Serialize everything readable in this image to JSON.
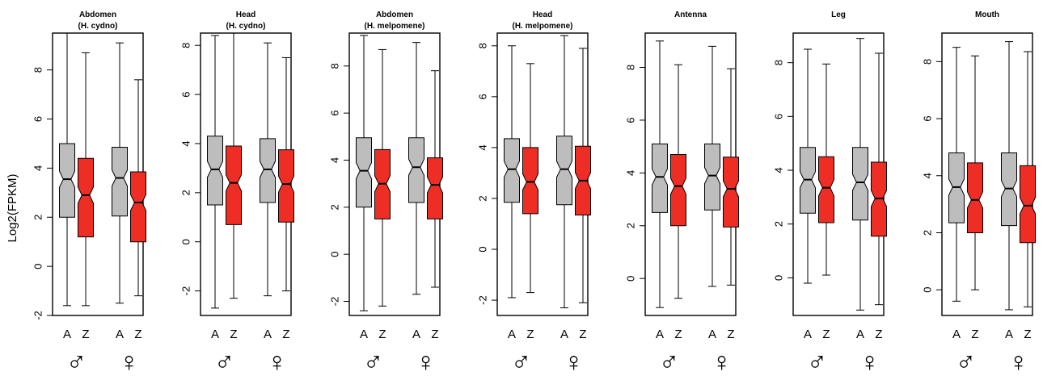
{
  "ylabel": "Log2(FPKM)",
  "categories": [
    "A",
    "Z",
    "A",
    "Z"
  ],
  "sex_groups": [
    "♂",
    "♀"
  ],
  "colors": {
    "A": "#bdbdbd",
    "Z": "#ee2e24",
    "stroke": "#000000"
  },
  "chart_data": [
    {
      "type": "boxplot",
      "title": [
        "Abdomen",
        "(H. cydno)"
      ],
      "ylim": [
        -2,
        9.5
      ],
      "yticks": [
        -2,
        0,
        2,
        4,
        6,
        8
      ],
      "boxes": [
        {
          "label": "A",
          "sex": "male",
          "min": -1.6,
          "q1": 2.0,
          "median": 3.55,
          "q3": 5.0,
          "max": 9.5
        },
        {
          "label": "Z",
          "sex": "male",
          "min": -1.6,
          "q1": 1.2,
          "median": 2.9,
          "q3": 4.4,
          "max": 8.7
        },
        {
          "label": "A",
          "sex": "female",
          "min": -1.5,
          "q1": 2.05,
          "median": 3.6,
          "q3": 4.85,
          "max": 9.1
        },
        {
          "label": "Z",
          "sex": "female",
          "min": -1.2,
          "q1": 1.0,
          "median": 2.6,
          "q3": 3.85,
          "max": 7.6
        }
      ]
    },
    {
      "type": "boxplot",
      "title": [
        "Head",
        "(H. cydno)"
      ],
      "ylim": [
        -3,
        8.5
      ],
      "yticks": [
        -2,
        0,
        2,
        4,
        6,
        8
      ],
      "boxes": [
        {
          "label": "A",
          "sex": "male",
          "min": -2.7,
          "q1": 1.5,
          "median": 2.95,
          "q3": 4.3,
          "max": 8.4
        },
        {
          "label": "Z",
          "sex": "male",
          "min": -2.3,
          "q1": 0.7,
          "median": 2.4,
          "q3": 3.9,
          "max": 8.5
        },
        {
          "label": "A",
          "sex": "female",
          "min": -2.2,
          "q1": 1.6,
          "median": 2.95,
          "q3": 4.2,
          "max": 8.1
        },
        {
          "label": "Z",
          "sex": "female",
          "min": -2.0,
          "q1": 0.8,
          "median": 2.35,
          "q3": 3.75,
          "max": 7.5
        }
      ]
    },
    {
      "type": "boxplot",
      "title": [
        "Abdomen",
        "(H. melpomene)"
      ],
      "ylim": [
        -2.6,
        9.4
      ],
      "yticks": [
        -2,
        0,
        2,
        4,
        6,
        8
      ],
      "boxes": [
        {
          "label": "A",
          "sex": "male",
          "min": -2.4,
          "q1": 2.0,
          "median": 3.55,
          "q3": 4.95,
          "max": 9.3
        },
        {
          "label": "Z",
          "sex": "male",
          "min": -2.2,
          "q1": 1.5,
          "median": 3.0,
          "q3": 4.45,
          "max": 8.7
        },
        {
          "label": "A",
          "sex": "female",
          "min": -1.7,
          "q1": 2.2,
          "median": 3.7,
          "q3": 4.95,
          "max": 9.0
        },
        {
          "label": "Z",
          "sex": "female",
          "min": -1.4,
          "q1": 1.5,
          "median": 2.95,
          "q3": 4.1,
          "max": 7.8
        }
      ]
    },
    {
      "type": "boxplot",
      "title": [
        "Head",
        "(H. melpomene)"
      ],
      "ylim": [
        -2.6,
        8.5
      ],
      "yticks": [
        -2,
        0,
        2,
        4,
        6,
        8
      ],
      "boxes": [
        {
          "label": "A",
          "sex": "male",
          "min": -1.9,
          "q1": 1.85,
          "median": 3.15,
          "q3": 4.35,
          "max": 8.0
        },
        {
          "label": "Z",
          "sex": "male",
          "min": -1.7,
          "q1": 1.4,
          "median": 2.65,
          "q3": 4.0,
          "max": 7.3
        },
        {
          "label": "A",
          "sex": "female",
          "min": -2.3,
          "q1": 1.75,
          "median": 3.15,
          "q3": 4.45,
          "max": 8.4
        },
        {
          "label": "Z",
          "sex": "female",
          "min": -2.1,
          "q1": 1.35,
          "median": 2.7,
          "q3": 4.05,
          "max": 7.9
        }
      ]
    },
    {
      "type": "boxplot",
      "title": [
        "Antenna"
      ],
      "ylim": [
        -1.4,
        9.3
      ],
      "yticks": [
        0,
        2,
        4,
        6,
        8
      ],
      "boxes": [
        {
          "label": "A",
          "sex": "male",
          "min": -1.1,
          "q1": 2.5,
          "median": 3.85,
          "q3": 5.1,
          "max": 9.0
        },
        {
          "label": "Z",
          "sex": "male",
          "min": -0.75,
          "q1": 2.0,
          "median": 3.5,
          "q3": 4.7,
          "max": 8.1
        },
        {
          "label": "A",
          "sex": "female",
          "min": -0.3,
          "q1": 2.6,
          "median": 3.9,
          "q3": 5.1,
          "max": 8.8
        },
        {
          "label": "Z",
          "sex": "female",
          "min": -0.25,
          "q1": 1.95,
          "median": 3.4,
          "q3": 4.6,
          "max": 7.95
        }
      ]
    },
    {
      "type": "boxplot",
      "title": [
        "Leg"
      ],
      "ylim": [
        -1.4,
        9.1
      ],
      "yticks": [
        0,
        2,
        4,
        6,
        8
      ],
      "boxes": [
        {
          "label": "A",
          "sex": "male",
          "min": -0.2,
          "q1": 2.4,
          "median": 3.65,
          "q3": 4.85,
          "max": 8.5
        },
        {
          "label": "Z",
          "sex": "male",
          "min": 0.1,
          "q1": 2.05,
          "median": 3.35,
          "q3": 4.5,
          "max": 7.95
        },
        {
          "label": "A",
          "sex": "female",
          "min": -1.2,
          "q1": 2.15,
          "median": 3.55,
          "q3": 4.85,
          "max": 8.9
        },
        {
          "label": "Z",
          "sex": "female",
          "min": -1.0,
          "q1": 1.55,
          "median": 2.95,
          "q3": 4.3,
          "max": 8.35
        }
      ]
    },
    {
      "type": "boxplot",
      "title": [
        "Mouth"
      ],
      "ylim": [
        -0.9,
        9.0
      ],
      "yticks": [
        0,
        2,
        4,
        6,
        8
      ],
      "boxes": [
        {
          "label": "A",
          "sex": "male",
          "min": -0.4,
          "q1": 2.35,
          "median": 3.6,
          "q3": 4.8,
          "max": 8.5
        },
        {
          "label": "Z",
          "sex": "male",
          "min": 0.0,
          "q1": 2.0,
          "median": 3.15,
          "q3": 4.45,
          "max": 8.2
        },
        {
          "label": "A",
          "sex": "female",
          "min": -0.7,
          "q1": 2.25,
          "median": 3.55,
          "q3": 4.8,
          "max": 8.7
        },
        {
          "label": "Z",
          "sex": "female",
          "min": -0.6,
          "q1": 1.65,
          "median": 2.95,
          "q3": 4.35,
          "max": 8.35
        }
      ]
    }
  ]
}
